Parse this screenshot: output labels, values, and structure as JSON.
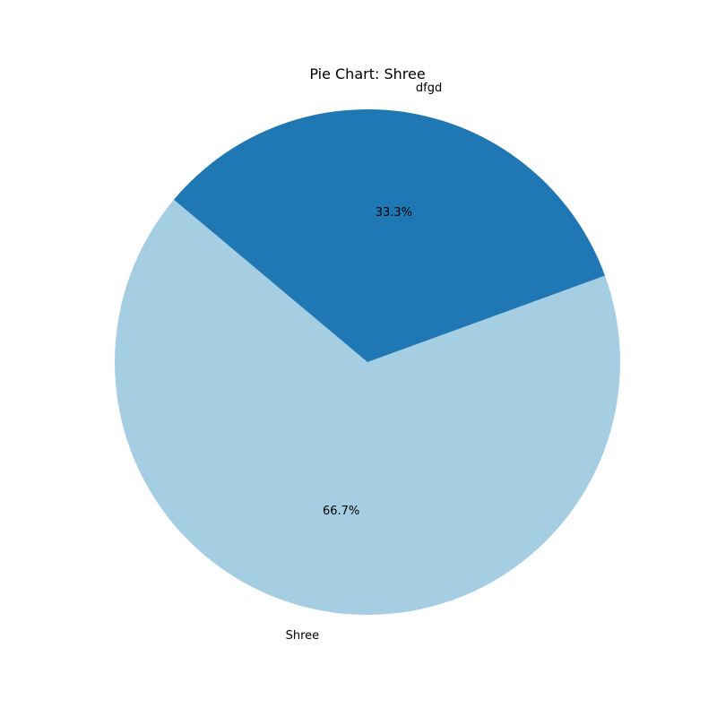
{
  "chart_data": {
    "type": "pie",
    "title": "Pie Chart: Shree",
    "start_angle_deg": 140,
    "counterclock": true,
    "slices": [
      {
        "label": "Shree",
        "value": 2,
        "pct_label": "66.7%",
        "color": "#a6cee3"
      },
      {
        "label": "dfgd",
        "value": 1,
        "pct_label": "33.3%",
        "color": "#1f78b4"
      }
    ]
  }
}
